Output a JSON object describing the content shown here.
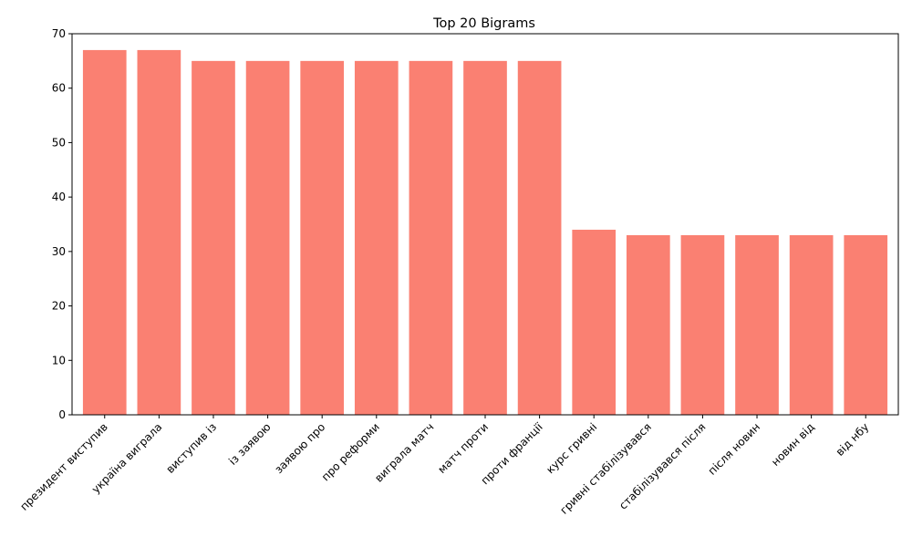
{
  "chart_data": {
    "type": "bar",
    "title": "Top 20 Bigrams",
    "xlabel": "",
    "ylabel": "",
    "categories": [
      "президент виступив",
      "україна виграла",
      "виступив із",
      "із заявою",
      "заявою про",
      "про реформи",
      "виграла матч",
      "матч проти",
      "проти франції",
      "курс гривні",
      "гривні стабілізувався",
      "стабілізувався після",
      "після новин",
      "новин від",
      "від нбу"
    ],
    "values": [
      67,
      67,
      65,
      65,
      65,
      65,
      65,
      65,
      65,
      34,
      33,
      33,
      33,
      33,
      33
    ],
    "ylim": [
      0,
      70
    ],
    "yticks": [
      0,
      10,
      20,
      30,
      40,
      50,
      60,
      70
    ],
    "bar_color": "#fa8072",
    "grid": false,
    "legend": "none"
  }
}
